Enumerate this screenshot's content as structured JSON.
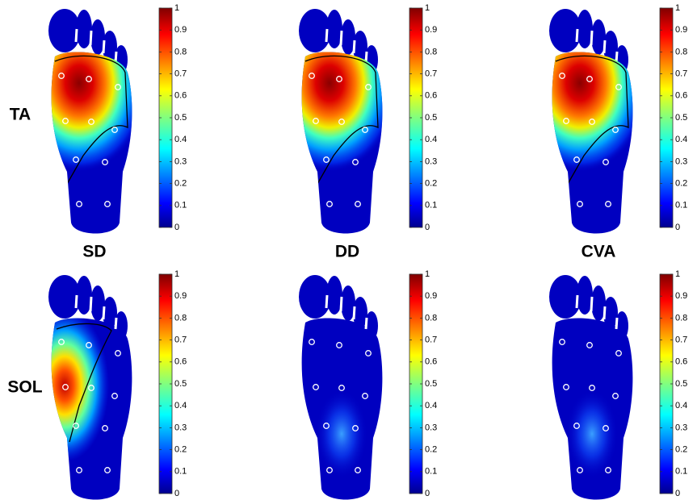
{
  "chart_data": {
    "type": "heatmap",
    "rows": [
      "TA",
      "SOL"
    ],
    "columns": [
      "SD",
      "DD",
      "CVA"
    ],
    "colorbar": {
      "clim": [
        0,
        1
      ],
      "ticks": [
        0,
        0.1,
        0.2,
        0.3,
        0.4,
        0.5,
        0.6,
        0.7,
        0.8,
        0.9,
        1
      ]
    }
  }
}
